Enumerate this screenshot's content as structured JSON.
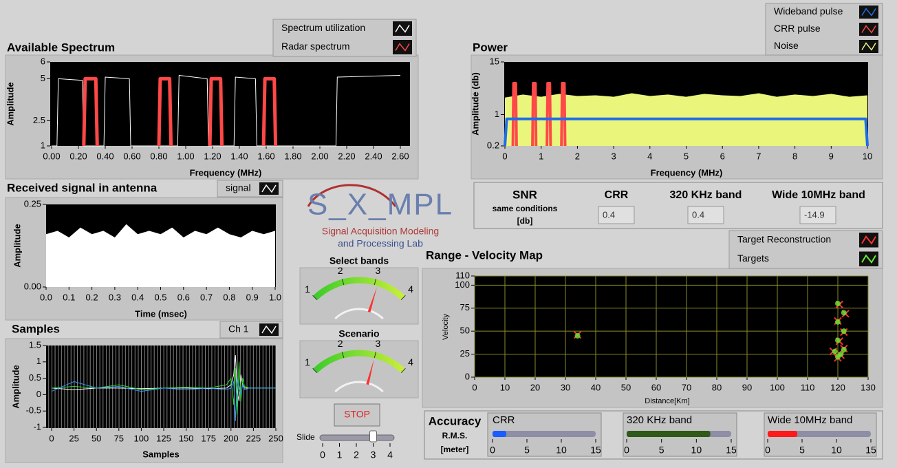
{
  "available_spectrum": {
    "type": "line",
    "title": "Available Spectrum",
    "y_label": "Amplitude",
    "x_label": "Frequency (MHz)",
    "xlim": [
      0,
      2.6
    ],
    "ylim": [
      1,
      6
    ],
    "xticks": [
      {
        "value": 0,
        "label": "0.00"
      },
      {
        "value": 0.2,
        "label": "0.20"
      },
      {
        "value": 0.4,
        "label": "0.40"
      },
      {
        "value": 0.6,
        "label": "0.60"
      },
      {
        "value": 0.8,
        "label": "0.80"
      },
      {
        "value": 1,
        "label": "1.00"
      },
      {
        "value": 1.2,
        "label": "1.20"
      },
      {
        "value": 1.4,
        "label": "1.40"
      },
      {
        "value": 1.6,
        "label": "1.60"
      },
      {
        "value": 1.8,
        "label": "1.80"
      },
      {
        "value": 2,
        "label": "2.00"
      },
      {
        "value": 2.2,
        "label": "2.20"
      },
      {
        "value": 2.4,
        "label": "2.40"
      },
      {
        "value": 2.6,
        "label": "2.60"
      }
    ],
    "yticks": [
      1,
      2.5,
      5,
      6
    ],
    "series": [
      {
        "name": "Spectrum utilization",
        "color": "#ffffff",
        "kind": "line",
        "x": [
          0,
          0.04,
          0.05,
          0.23,
          0.24,
          0.39,
          0.4,
          0.58,
          0.59,
          0.94,
          0.95,
          1.16,
          1.17,
          1.36,
          1.37,
          1.52,
          1.53,
          2.12,
          2.13,
          2.6
        ],
        "values": [
          1,
          1,
          5,
          4.9,
          1,
          1,
          5.1,
          5,
          1,
          1,
          5.2,
          5,
          1,
          1,
          5.1,
          5,
          1,
          1,
          5.1,
          5.2
        ]
      },
      {
        "name": "Radar spectrum",
        "color": "#ff4848",
        "kind": "line",
        "x": [
          0.24,
          0.25,
          0.33,
          0.34,
          0.5,
          0.8,
          0.81,
          0.88,
          0.89,
          1.0,
          1.18,
          1.19,
          1.26,
          1.27,
          1.4,
          1.58,
          1.59,
          1.66,
          1.67
        ],
        "values": [
          1,
          5,
          5,
          1,
          null,
          1,
          5,
          5,
          1,
          null,
          1,
          5,
          5,
          1,
          null,
          1,
          5,
          5,
          1
        ]
      }
    ]
  },
  "power": {
    "type": "line",
    "title": "Power",
    "y_label": "Amplitude (db)",
    "x_label": "Frequency (MHz)",
    "log_y": true,
    "xlim": [
      0,
      10
    ],
    "ylim": [
      0.2,
      15
    ],
    "xticks": [
      0,
      1,
      2,
      3,
      4,
      5,
      6,
      7,
      8,
      9,
      10
    ],
    "yticks": [
      0.2,
      1,
      15
    ],
    "series": [
      {
        "name": "Wideband pulse",
        "color": "#1e6ee8",
        "kind": "line",
        "x": [
          0,
          0.05,
          9.95,
          10
        ],
        "values": [
          0.2,
          0.8,
          0.8,
          0.2
        ]
      },
      {
        "name": "CRR pulse",
        "color": "#ff4848",
        "kind": "line",
        "x": [
          0.22,
          0.24,
          0.3,
          0.32,
          0.5,
          0.76,
          0.78,
          0.84,
          0.86,
          1.0,
          1.16,
          1.18,
          1.24,
          1.26,
          1.4,
          1.56,
          1.58,
          1.64,
          1.66
        ],
        "values": [
          0.2,
          5,
          5,
          0.2,
          null,
          0.2,
          5,
          5,
          0.2,
          null,
          0.2,
          5,
          5,
          0.2,
          null,
          0.2,
          5,
          5,
          0.2
        ]
      },
      {
        "name": "Noise",
        "color": "#eaf57c",
        "kind": "area",
        "x": [
          0,
          0.5,
          1,
          1.5,
          2,
          2.5,
          3,
          3.5,
          4,
          4.5,
          5,
          5.5,
          6,
          6.5,
          7,
          7.5,
          8,
          8.5,
          9,
          9.5,
          10
        ],
        "values": [
          2.4,
          2.8,
          2.5,
          2.9,
          2.6,
          2.7,
          2.5,
          3.0,
          2.6,
          2.8,
          2.5,
          2.9,
          2.7,
          2.6,
          3.0,
          2.5,
          2.8,
          2.6,
          2.9,
          2.5,
          2.7
        ]
      }
    ]
  },
  "received_signal": {
    "type": "line",
    "title": "Received signal in antenna",
    "y_label": "Amplitude",
    "x_label": "Time (msec)",
    "xlim": [
      0,
      1
    ],
    "ylim": [
      0,
      0.25
    ],
    "xticks": [
      {
        "value": 0,
        "label": "0.0"
      },
      0.1,
      0.2,
      0.3,
      0.4,
      0.5,
      0.6,
      0.7,
      0.8,
      0.9,
      {
        "value": 1,
        "label": "1.0"
      }
    ],
    "yticks": [
      {
        "value": 0,
        "label": "0.00"
      },
      {
        "value": 0.25,
        "label": "0.25"
      }
    ],
    "series": [
      {
        "name": "signal",
        "color": "#ffffff",
        "kind": "area",
        "x": [
          0,
          0.05,
          0.1,
          0.15,
          0.2,
          0.25,
          0.3,
          0.35,
          0.4,
          0.45,
          0.5,
          0.55,
          0.6,
          0.65,
          0.7,
          0.75,
          0.8,
          0.85,
          0.9,
          0.95,
          1
        ],
        "values": [
          0.16,
          0.17,
          0.15,
          0.18,
          0.16,
          0.17,
          0.15,
          0.19,
          0.16,
          0.17,
          0.16,
          0.18,
          0.15,
          0.17,
          0.16,
          0.18,
          0.16,
          0.15,
          0.17,
          0.16,
          0.17
        ]
      }
    ]
  },
  "samples": {
    "type": "line",
    "title": "Samples",
    "y_label": "Amplitude",
    "x_label": "Samples",
    "xlim": [
      0,
      250
    ],
    "ylim": [
      -1,
      1.5
    ],
    "xticks": [
      0,
      25,
      50,
      75,
      100,
      125,
      150,
      175,
      200,
      225,
      250
    ],
    "yticks": [
      -1,
      -0.5,
      0,
      0.5,
      1,
      1.5
    ],
    "series": [
      {
        "name": "Ch 1",
        "color": "#ffffff",
        "kind": "line",
        "x": [
          0,
          25,
          50,
          75,
          100,
          125,
          150,
          175,
          195,
          200,
          203,
          205,
          207,
          209,
          211,
          213,
          215,
          220,
          250
        ],
        "values": [
          0.2,
          0.15,
          0.2,
          0.2,
          0.18,
          0.2,
          0.2,
          0.18,
          0.2,
          0.3,
          0.6,
          1.2,
          0.1,
          -0.2,
          0.6,
          0.3,
          0.2,
          0.2,
          0.2
        ]
      },
      {
        "color": "#33dd33",
        "kind": "line",
        "x": [
          0,
          25,
          50,
          75,
          100,
          125,
          150,
          175,
          195,
          200,
          203,
          205,
          207,
          209,
          211,
          213,
          215,
          220,
          250
        ],
        "values": [
          0.2,
          0.25,
          0.2,
          0.3,
          0.15,
          0.2,
          0.22,
          0.2,
          0.3,
          0.5,
          -0.3,
          0.8,
          -0.6,
          1.0,
          -0.2,
          0.5,
          0.25,
          0.2,
          0.2
        ]
      },
      {
        "color": "#3399ff",
        "kind": "line",
        "x": [
          0,
          25,
          50,
          75,
          100,
          125,
          150,
          175,
          195,
          200,
          203,
          205,
          207,
          209,
          211,
          213,
          215,
          220,
          250
        ],
        "values": [
          0.1,
          0.4,
          0.2,
          0.25,
          0.1,
          0.2,
          0.15,
          0.2,
          0.15,
          0.2,
          0.4,
          -0.8,
          0.5,
          0.2,
          0.0,
          0.3,
          0.15,
          0.2,
          0.2
        ]
      }
    ]
  },
  "range_velocity_map": {
    "type": "scatter",
    "title": "Range - Velocity Map",
    "y_label": "Velocity",
    "x_label": "Distance[Km]",
    "xlim": [
      0,
      130
    ],
    "ylim": [
      0,
      110
    ],
    "grid": true,
    "xticks": [
      0,
      10,
      20,
      30,
      40,
      50,
      60,
      70,
      80,
      90,
      100,
      110,
      120,
      130
    ],
    "yticks": [
      0,
      25,
      50,
      75,
      100,
      110
    ],
    "series": [
      {
        "name": "Target Reconstruction",
        "color": "#ff3030",
        "kind": "scatter",
        "marker": "x",
        "x": [
          34,
          120.5,
          122.5,
          120,
          122,
          120.5,
          122,
          118.5,
          121,
          120
        ],
        "values": [
          46,
          79,
          69,
          61,
          49,
          39,
          31,
          28,
          24,
          21
        ]
      },
      {
        "name": "Targets",
        "color": "#66ee33",
        "kind": "scatter",
        "marker": "o",
        "x": [
          34,
          120,
          122,
          120,
          122,
          120,
          122,
          119,
          121,
          120
        ],
        "values": [
          45,
          80,
          70,
          60,
          50,
          40,
          30,
          28,
          25,
          22
        ]
      }
    ]
  },
  "logo": {
    "name": "S_X_MPL",
    "lines": [
      "Signal Acquisition Modeling",
      "and Processing Lab"
    ]
  },
  "snr": {
    "title": "SNR",
    "subtitle": "same conditions",
    "unit": "[db]",
    "columns": [
      {
        "label": "CRR",
        "value": 0.4
      },
      {
        "label": "320 KHz band",
        "value": 0.4
      },
      {
        "label": "Wide 10MHz band",
        "value": -14.9
      }
    ]
  },
  "gauges": [
    {
      "label": "Select bands",
      "min": 1,
      "max": 4,
      "ticks": [
        1,
        2,
        3,
        4
      ],
      "value": 3.1
    },
    {
      "label": "Scenario",
      "min": 1,
      "max": 4,
      "ticks": [
        1,
        2,
        3,
        4
      ],
      "value": 3
    }
  ],
  "stop_button": {
    "label": "STOP"
  },
  "slider": {
    "label": "Slide",
    "min": 0,
    "max": 4,
    "ticks": [
      0,
      1,
      2,
      3,
      4
    ],
    "value": 3
  },
  "accuracy": {
    "title": "Accuracy",
    "subtitle": "R.M.S.",
    "unit": "[meter]",
    "bars": [
      {
        "label": "CRR",
        "value": 2,
        "min": 0,
        "max": 15,
        "ticks": [
          0,
          5,
          10,
          15
        ],
        "color": "#1a5cff"
      },
      {
        "label": "320 KHz band",
        "value": 12,
        "min": 0,
        "max": 15,
        "ticks": [
          0,
          5,
          10,
          15
        ],
        "color": "#2f5a1a"
      },
      {
        "label": "Wide 10MHz band",
        "value": 4.3,
        "min": 0,
        "max": 15,
        "ticks": [
          0,
          5,
          10,
          15
        ],
        "color": "#ff1a1a"
      }
    ]
  }
}
